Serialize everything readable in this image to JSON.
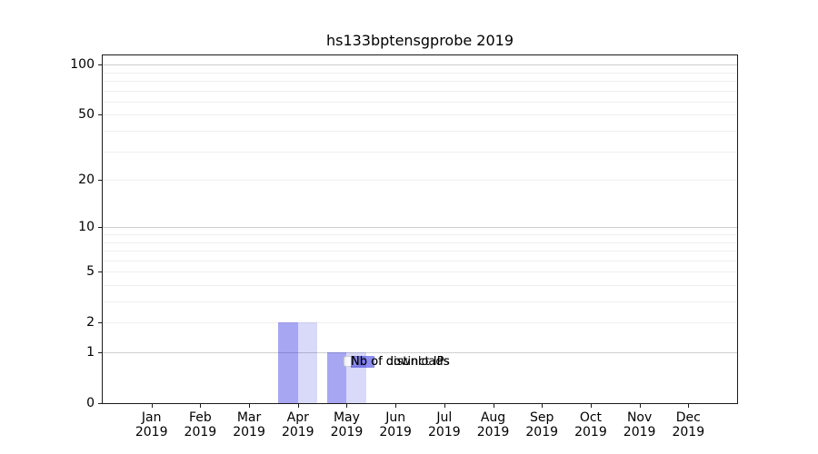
{
  "chart_data": {
    "type": "bar",
    "title": "hs133bptensgprobe 2019",
    "x_tick_months": [
      "Jan",
      "Feb",
      "Mar",
      "Apr",
      "May",
      "Jun",
      "Jul",
      "Aug",
      "Sep",
      "Oct",
      "Nov",
      "Dec"
    ],
    "x_tick_year": "2019",
    "series": [
      {
        "name": "Nb of distinct IPs",
        "color": "#1414dc",
        "alpha": 0.38,
        "values": [
          0,
          0,
          0,
          2,
          1,
          0,
          0,
          0,
          0,
          0,
          0,
          0
        ]
      },
      {
        "name": "Nb of downloads",
        "color": "#1414dc",
        "alpha": 0.16,
        "values": [
          0,
          0,
          0,
          2,
          1,
          0,
          0,
          0,
          0,
          0,
          0,
          0
        ]
      }
    ],
    "yscale": "log1p",
    "ylim": [
      0,
      113
    ],
    "y_ticks": [
      0,
      1,
      2,
      5,
      10,
      20,
      50,
      100
    ],
    "y_major_gridlines": [
      1,
      10,
      100
    ],
    "y_minor_gridlines": [
      2,
      3,
      4,
      5,
      6,
      7,
      8,
      9,
      20,
      30,
      40,
      50,
      60,
      70,
      80,
      90
    ],
    "grid_color_major": "#cfcfcf",
    "grid_color_minor": "#efefef",
    "axis_color": "#1a1a1a",
    "legend": {
      "location": "inside-lower-center"
    }
  }
}
